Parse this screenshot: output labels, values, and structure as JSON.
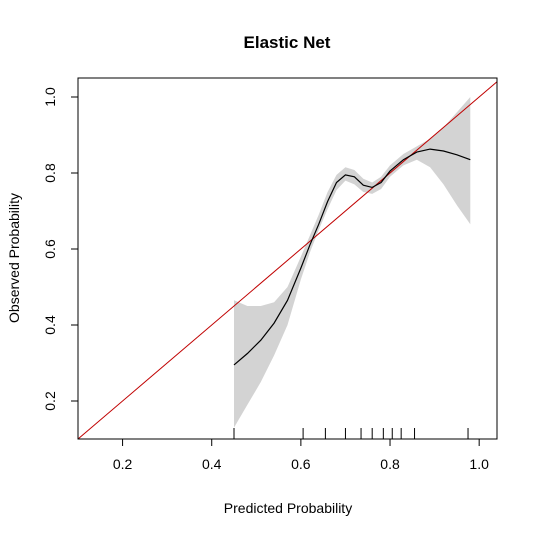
{
  "chart_data": {
    "type": "line",
    "title": "Elastic Net",
    "xlabel": "Predicted Probability",
    "ylabel": "Observed Probability",
    "xlim": [
      0.1,
      1.04
    ],
    "ylim": [
      0.1,
      1.05
    ],
    "xticks": [
      0.2,
      0.4,
      0.6,
      0.8,
      1.0
    ],
    "xtick_labels": [
      "0.2",
      "0.4",
      "0.6",
      "0.8",
      "1.0"
    ],
    "yticks": [
      0.2,
      0.4,
      0.6,
      0.8,
      1.0
    ],
    "ytick_labels": [
      "0.2",
      "0.4",
      "0.6",
      "0.8",
      "1.0"
    ],
    "colors": {
      "curve": "#000000",
      "band": "#d3d3d3",
      "reference": "#c00000"
    },
    "reference_line": {
      "x": [
        0.1,
        1.04
      ],
      "y": [
        0.1,
        1.04
      ]
    },
    "series": [
      {
        "x": [
          0.45,
          0.48,
          0.51,
          0.54,
          0.57,
          0.6,
          0.62,
          0.64,
          0.66,
          0.68,
          0.7,
          0.72,
          0.74,
          0.76,
          0.78,
          0.8,
          0.83,
          0.86,
          0.89,
          0.92,
          0.95,
          0.98
        ],
        "y": [
          0.295,
          0.325,
          0.36,
          0.405,
          0.465,
          0.55,
          0.61,
          0.665,
          0.725,
          0.775,
          0.795,
          0.79,
          0.768,
          0.762,
          0.775,
          0.805,
          0.835,
          0.855,
          0.863,
          0.858,
          0.848,
          0.835
        ],
        "lower": [
          0.13,
          0.19,
          0.25,
          0.32,
          0.4,
          0.52,
          0.59,
          0.65,
          0.705,
          0.755,
          0.78,
          0.77,
          0.75,
          0.745,
          0.758,
          0.79,
          0.82,
          0.835,
          0.815,
          0.77,
          0.715,
          0.665
        ],
        "upper": [
          0.465,
          0.45,
          0.45,
          0.46,
          0.5,
          0.58,
          0.635,
          0.69,
          0.75,
          0.795,
          0.815,
          0.808,
          0.785,
          0.775,
          0.79,
          0.82,
          0.85,
          0.87,
          0.89,
          0.92,
          0.96,
          1.0
        ]
      }
    ],
    "rug": [
      0.45,
      0.605,
      0.655,
      0.7,
      0.735,
      0.76,
      0.785,
      0.805,
      0.825,
      0.855,
      0.975
    ]
  }
}
